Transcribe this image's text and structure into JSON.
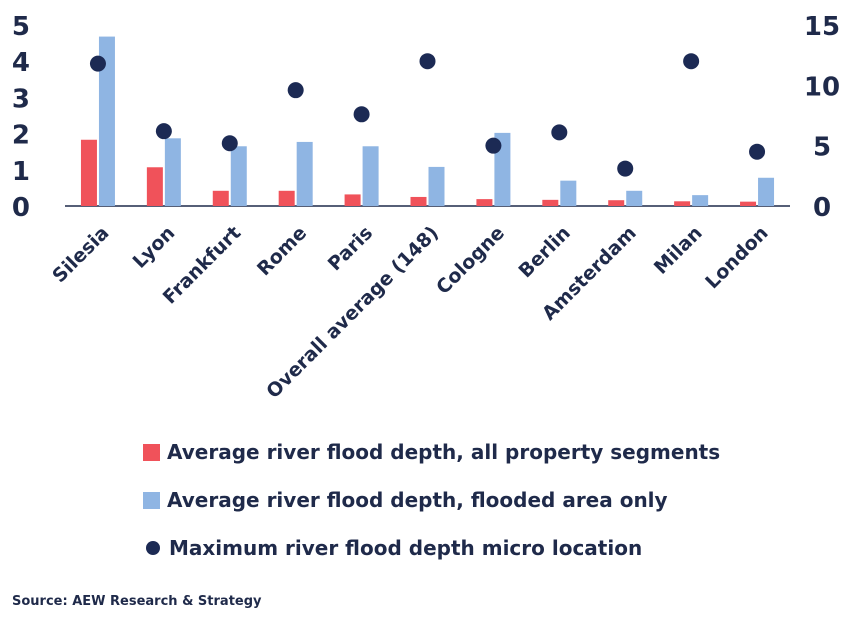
{
  "chart_data": {
    "type": "bar",
    "categories": [
      "Silesia",
      "Lyon",
      "Frankfurt",
      "Rome",
      "Paris",
      "Overall average (148)",
      "Cologne",
      "Berlin",
      "Amsterdam",
      "Milan",
      "London"
    ],
    "series": [
      {
        "name": "Average river flood depth, all property segments",
        "type": "bar",
        "axis": "left",
        "values": [
          1.83,
          1.07,
          0.42,
          0.42,
          0.32,
          0.25,
          0.19,
          0.17,
          0.16,
          0.13,
          0.12
        ]
      },
      {
        "name": "Average river flood depth, flooded area only",
        "type": "bar",
        "axis": "left",
        "values": [
          4.68,
          1.87,
          1.65,
          1.77,
          1.65,
          1.08,
          2.02,
          0.7,
          0.42,
          0.3,
          0.78
        ]
      },
      {
        "name": "Maximum river flood depth micro location",
        "type": "scatter",
        "axis": "right",
        "values": [
          11.8,
          6.2,
          5.2,
          9.6,
          7.6,
          12.0,
          5.0,
          6.1,
          3.1,
          12.0,
          4.5
        ]
      }
    ],
    "ylim_left": [
      0,
      5
    ],
    "yticks_left": [
      "0",
      "1",
      "2",
      "3",
      "4",
      "5"
    ],
    "ylim_right": [
      0,
      15
    ],
    "yticks_right": [
      "0",
      "5",
      "10",
      "15"
    ],
    "grid": false,
    "legend_position": "bottom",
    "colors": {
      "all_segments": "#f0525a",
      "flooded_only": "#8fb5e3",
      "max_depth": "#1c2a54",
      "axis": "#1f2a4a"
    }
  },
  "source": "Source: AEW Research & Strategy"
}
